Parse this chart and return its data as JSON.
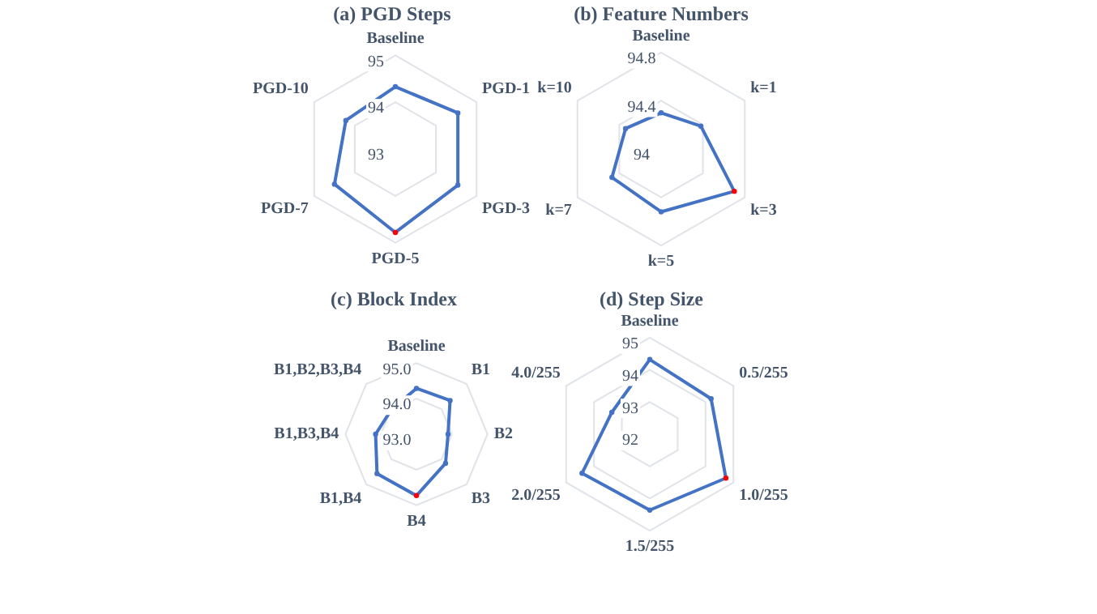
{
  "chart_data": [
    {
      "type": "radar",
      "title": "(a) PGD Steps",
      "categories": [
        "Baseline",
        "PGD-1",
        "PGD-3",
        "PGD-5",
        "PGD-7",
        "PGD-10"
      ],
      "series": [
        {
          "color": "#4472c4",
          "colors": [
            "#4472c4",
            "#4472c4",
            "#4472c4",
            "#ff0000",
            "#4472c4",
            "#4472c4"
          ],
          "values": [
            94.33,
            94.54,
            94.54,
            94.78,
            94.5,
            94.22
          ]
        }
      ],
      "ylim": [
        93,
        95
      ],
      "yticks": [
        93,
        94,
        95
      ],
      "grid": true,
      "marker": "circle"
    },
    {
      "type": "radar",
      "title": "(b) Feature Numbers",
      "categories": [
        "Baseline",
        "k=1",
        "k=3",
        "k=5",
        "k=7",
        "k=10"
      ],
      "series": [
        {
          "color": "#4472c4",
          "colors": [
            "#4472c4",
            "#4472c4",
            "#ff0000",
            "#4472c4",
            "#4472c4",
            "#4472c4"
          ],
          "values": [
            94.3,
            94.38,
            94.7,
            94.52,
            94.47,
            94.34
          ]
        }
      ],
      "ylim": [
        94,
        94.8
      ],
      "yticks": [
        94,
        94.4,
        94.8
      ],
      "grid": true,
      "marker": "circle"
    },
    {
      "type": "radar",
      "title": "(c) Block Index",
      "categories": [
        "Baseline",
        "B1",
        "B2",
        "B3",
        "B4",
        "B1,B4",
        "B1,B3,B4",
        "B1,B2,B3,B4"
      ],
      "series": [
        {
          "color": "#4472c4",
          "colors": [
            "#4472c4",
            "#4472c4",
            "#4472c4",
            "#4472c4",
            "#ff0000",
            "#4472c4",
            "#4472c4",
            "#4472c4"
          ],
          "values": [
            94.29,
            94.34,
            93.89,
            94.16,
            94.73,
            94.57,
            94.15,
            93.99
          ]
        }
      ],
      "ylim": [
        93,
        95
      ],
      "yticks": [
        {
          "value": 93,
          "label": "93.0"
        },
        {
          "value": 94,
          "label": "94.0"
        },
        {
          "value": 95,
          "label": "95.0"
        }
      ],
      "grid": true,
      "marker": "circle"
    },
    {
      "type": "radar",
      "title": "(d) Step Size",
      "categories": [
        "Baseline",
        "0.5/255",
        "1.0/255",
        "1.5/255",
        "2.0/255",
        "4.0/255"
      ],
      "series": [
        {
          "color": "#4472c4",
          "colors": [
            "#4472c4",
            "#4472c4",
            "#ff0000",
            "#4472c4",
            "#4472c4",
            "#4472c4"
          ],
          "values": [
            94.32,
            94.2,
            94.73,
            94.36,
            94.43,
            93.36
          ]
        }
      ],
      "ylim": [
        92,
        95
      ],
      "yticks": [
        92,
        93,
        94,
        95
      ],
      "grid": true,
      "marker": "circle"
    }
  ]
}
